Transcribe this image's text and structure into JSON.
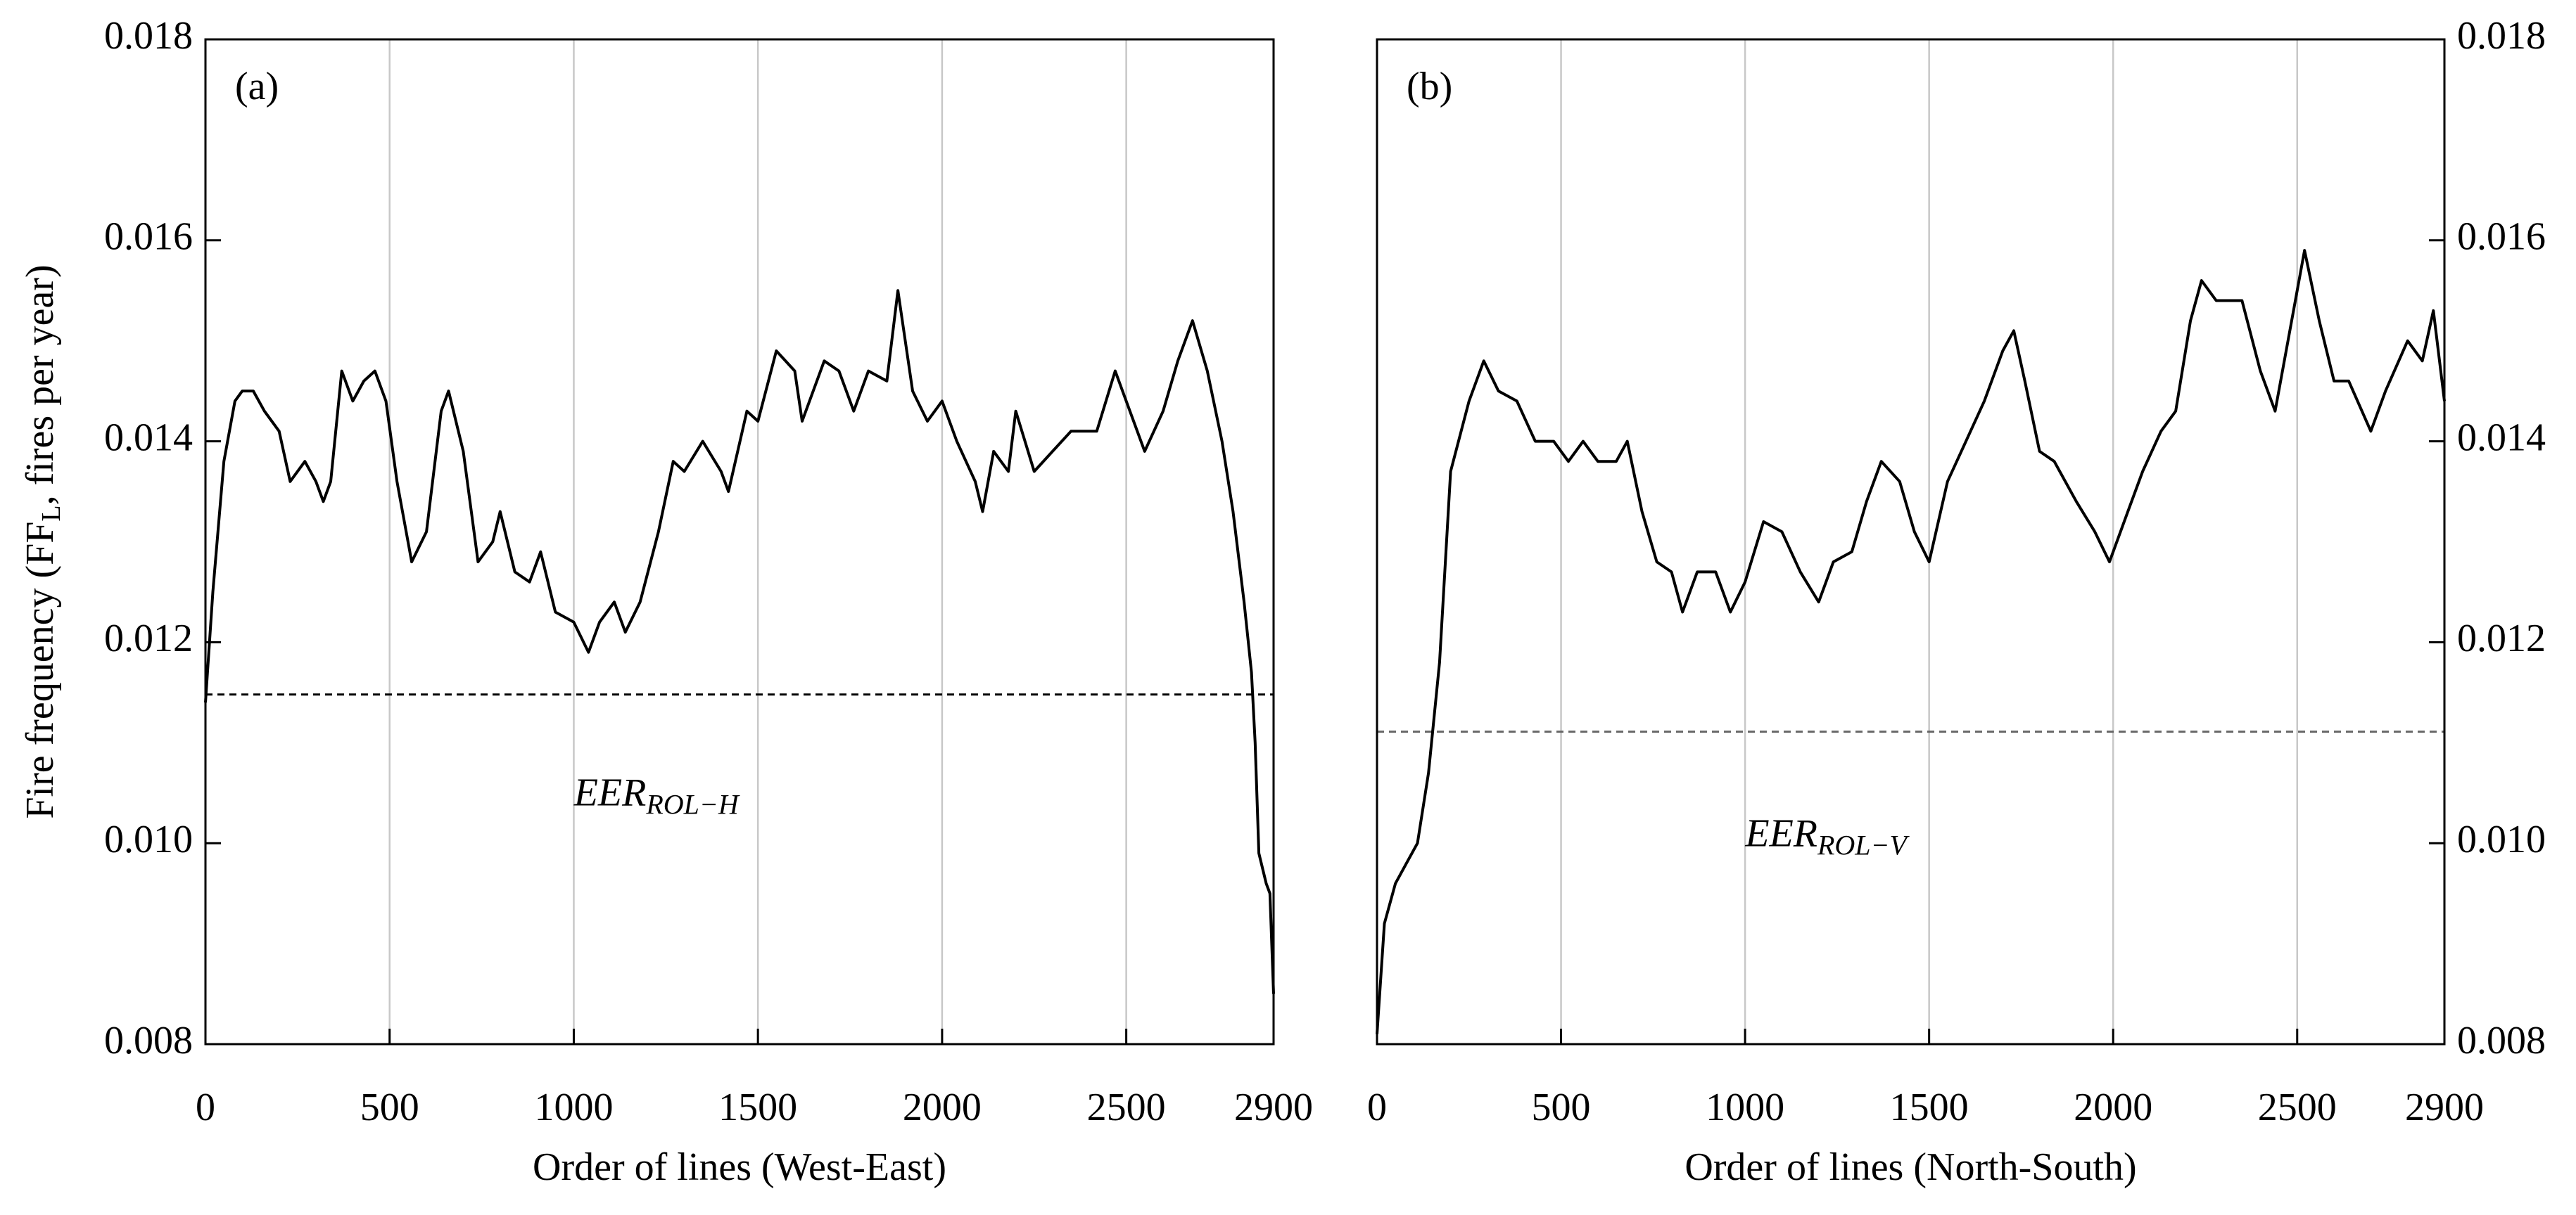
{
  "chart_data": [
    {
      "type": "line",
      "panel_label": "(a)",
      "xlabel": "Order of lines (West-East)",
      "ylabel": [
        "Fire frequency (FF",
        "L",
        ", fires per year)"
      ],
      "xlim": [
        0,
        2900
      ],
      "xticks": [
        0,
        500,
        1000,
        1500,
        2000,
        2500,
        2900
      ],
      "ylim": [
        0.008,
        0.018
      ],
      "yticks": [
        0.008,
        {
          "value": 0.01,
          "label": "0.010"
        },
        0.012,
        0.014,
        0.016,
        0.018
      ],
      "yaxis_side": "left",
      "grid": true,
      "color": "#000000",
      "reference_line": {
        "value": 0.01148,
        "label": [
          "EER",
          "ROL−H"
        ],
        "color": "#000000"
      },
      "x": [
        0,
        20,
        50,
        80,
        100,
        130,
        160,
        200,
        230,
        270,
        300,
        320,
        340,
        370,
        400,
        430,
        460,
        490,
        520,
        560,
        600,
        640,
        660,
        700,
        740,
        780,
        800,
        840,
        880,
        910,
        950,
        1000,
        1040,
        1070,
        1110,
        1140,
        1180,
        1230,
        1270,
        1300,
        1350,
        1400,
        1420,
        1470,
        1500,
        1550,
        1600,
        1620,
        1680,
        1720,
        1760,
        1800,
        1850,
        1880,
        1920,
        1960,
        2000,
        2040,
        2090,
        2110,
        2140,
        2180,
        2200,
        2250,
        2300,
        2350,
        2420,
        2470,
        2500,
        2550,
        2600,
        2640,
        2680,
        2720,
        2760,
        2790,
        2820,
        2840,
        2850,
        2860,
        2880,
        2890,
        2900
      ],
      "values": [
        0.0114,
        0.0125,
        0.0138,
        0.0144,
        0.0145,
        0.0145,
        0.0143,
        0.0141,
        0.0136,
        0.0138,
        0.0136,
        0.0134,
        0.0136,
        0.0147,
        0.0144,
        0.0146,
        0.0147,
        0.0144,
        0.0136,
        0.0128,
        0.0131,
        0.0143,
        0.0145,
        0.0139,
        0.0128,
        0.013,
        0.0133,
        0.0127,
        0.0126,
        0.0129,
        0.0123,
        0.0122,
        0.0119,
        0.0122,
        0.0124,
        0.0121,
        0.0124,
        0.0131,
        0.0138,
        0.0137,
        0.014,
        0.0137,
        0.0135,
        0.0143,
        0.0142,
        0.0149,
        0.0147,
        0.0142,
        0.0148,
        0.0147,
        0.0143,
        0.0147,
        0.0146,
        0.0155,
        0.0145,
        0.0142,
        0.0144,
        0.014,
        0.0136,
        0.0133,
        0.0139,
        0.0137,
        0.0143,
        0.0137,
        0.0139,
        0.0141,
        0.0141,
        0.0147,
        0.0144,
        0.0139,
        0.0143,
        0.0148,
        0.0152,
        0.0147,
        0.014,
        0.0133,
        0.0124,
        0.0117,
        0.011,
        0.0099,
        0.0096,
        0.0095,
        0.0085
      ]
    },
    {
      "type": "line",
      "panel_label": "(b)",
      "xlabel": "Order of lines (North-South)",
      "xlim": [
        0,
        2900
      ],
      "xticks": [
        0,
        500,
        1000,
        1500,
        2000,
        2500,
        2900
      ],
      "ylim": [
        0.008,
        0.018
      ],
      "yticks": [
        0.008,
        {
          "value": 0.01,
          "label": "0.010"
        },
        0.012,
        0.014,
        0.016,
        0.018
      ],
      "yaxis_side": "right",
      "grid": true,
      "color": "#000000",
      "reference_line": {
        "value": 0.01111,
        "label": [
          "EER",
          "ROL−V"
        ],
        "color": "#666666"
      },
      "x": [
        0,
        20,
        50,
        80,
        110,
        140,
        170,
        200,
        250,
        290,
        330,
        380,
        430,
        480,
        520,
        560,
        600,
        650,
        680,
        720,
        760,
        800,
        830,
        870,
        920,
        960,
        1000,
        1050,
        1100,
        1150,
        1200,
        1240,
        1290,
        1330,
        1370,
        1420,
        1460,
        1500,
        1550,
        1600,
        1650,
        1700,
        1730,
        1760,
        1800,
        1840,
        1900,
        1950,
        1990,
        2040,
        2080,
        2130,
        2170,
        2210,
        2240,
        2280,
        2350,
        2400,
        2440,
        2480,
        2520,
        2560,
        2600,
        2640,
        2700,
        2740,
        2800,
        2840,
        2870,
        2900
      ],
      "values": [
        0.0081,
        0.0092,
        0.0096,
        0.0098,
        0.01,
        0.0107,
        0.0118,
        0.0137,
        0.0144,
        0.0148,
        0.0145,
        0.0144,
        0.014,
        0.014,
        0.0138,
        0.014,
        0.0138,
        0.0138,
        0.014,
        0.0133,
        0.0128,
        0.0127,
        0.0123,
        0.0127,
        0.0127,
        0.0123,
        0.0126,
        0.0132,
        0.0131,
        0.0127,
        0.0124,
        0.0128,
        0.0129,
        0.0134,
        0.0138,
        0.0136,
        0.0131,
        0.0128,
        0.0136,
        0.014,
        0.0144,
        0.0149,
        0.0151,
        0.0146,
        0.0139,
        0.0138,
        0.0134,
        0.0131,
        0.0128,
        0.0133,
        0.0137,
        0.0141,
        0.0143,
        0.0152,
        0.0156,
        0.0154,
        0.0154,
        0.0147,
        0.0143,
        0.0151,
        0.0159,
        0.0152,
        0.0146,
        0.0146,
        0.0141,
        0.0145,
        0.015,
        0.0148,
        0.0153,
        0.0144
      ]
    }
  ]
}
